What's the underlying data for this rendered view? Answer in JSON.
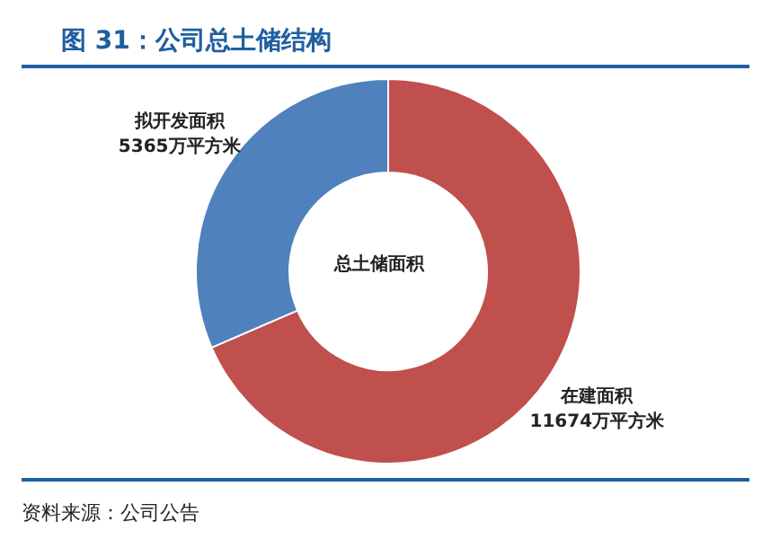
{
  "chart_data": {
    "type": "donut",
    "title": "图 31：公司总土储结构",
    "categories": [
      "在建面积",
      "拟开发面积"
    ],
    "values": [
      11674,
      5365
    ],
    "value_labels": [
      "11674万平方米",
      "5365万平方米"
    ],
    "colors": [
      "#c0504d",
      "#4f81bd"
    ],
    "annotations": [
      "总土储面积",
      "资料来源：公司公告"
    ],
    "legend": false
  }
}
